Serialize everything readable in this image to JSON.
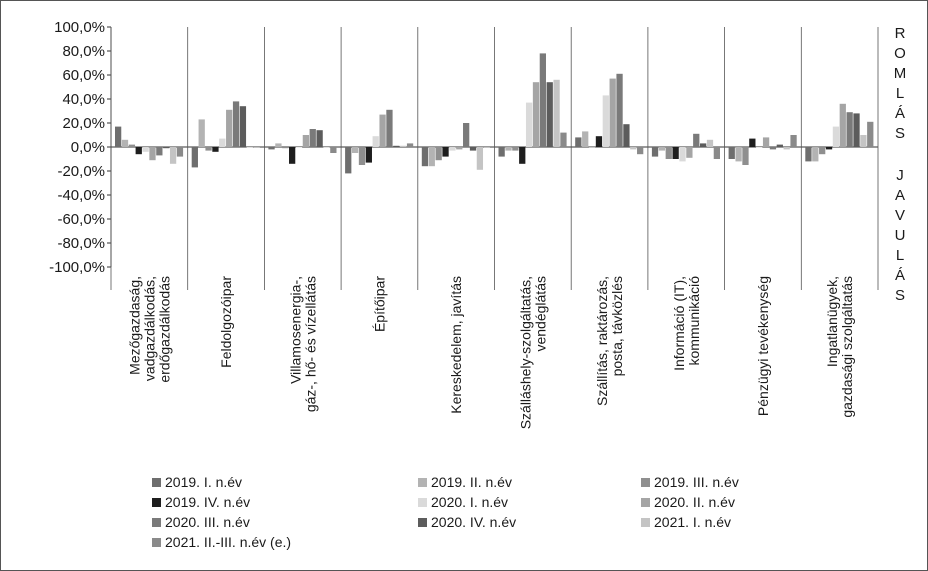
{
  "side_labels": {
    "top": "ROMLÁS",
    "bottom": "JAVULÁS"
  },
  "colors": {
    "axis": "#333333",
    "series": [
      "#6e6e6e",
      "#b3b3b3",
      "#8f8f8f",
      "#1e1e1e",
      "#dadada",
      "#a5a5a5",
      "#7a7a7a",
      "#5c5c5c",
      "#c4c4c4",
      "#8a8a8a"
    ]
  },
  "chart_data": {
    "type": "bar",
    "title": "",
    "xlabel": "",
    "ylabel": "",
    "ylim": [
      -100,
      100
    ],
    "yticks": [
      "100,0%",
      "80,0%",
      "60,0%",
      "40,0%",
      "20,0%",
      "0,0%",
      "-20,0%",
      "-40,0%",
      "-60,0%",
      "-80,0%",
      "-100,0%"
    ],
    "grid": false,
    "legend_position": "bottom",
    "categories": [
      [
        "Mezőgazdaság,",
        "vadgazdálkodás,",
        "erdőgazdálkodás"
      ],
      [
        "Feldolgozóipar"
      ],
      [
        "Villamosenergia-,",
        "gáz-, hő- és vízellátás"
      ],
      [
        "Építőipar"
      ],
      [
        "Kereskedelem, javítás"
      ],
      [
        "Szálláshely-szolgáltatás,",
        "vendéglátás"
      ],
      [
        "Szállítás, raktározás,",
        "posta, távközlés"
      ],
      [
        "Információ (IT),",
        "kommunikáció"
      ],
      [
        "Pénzügyi tevékenység"
      ],
      [
        "Ingatlanügyek,",
        "gazdasági szolgáltatás"
      ]
    ],
    "series": [
      {
        "name": "2019. I. n.év",
        "values": [
          17,
          -17,
          -2,
          -22,
          -16,
          -8,
          8,
          -8,
          -10,
          -12
        ]
      },
      {
        "name": "2019. II. n.év",
        "values": [
          6,
          23,
          3,
          -5,
          -16,
          -3,
          13,
          -3,
          -12,
          -12
        ]
      },
      {
        "name": "2019. III. n.év",
        "values": [
          2,
          -3,
          -1,
          -15,
          -11,
          -3,
          0,
          -10,
          -15,
          -6
        ]
      },
      {
        "name": "2019. IV. n.év",
        "values": [
          -6,
          -4,
          -14,
          -13,
          -8,
          -14,
          9,
          -10,
          7,
          -2
        ]
      },
      {
        "name": "2020. I. n.év",
        "values": [
          -4,
          7,
          0,
          9,
          -3,
          37,
          43,
          -12,
          0,
          17
        ]
      },
      {
        "name": "2020. II. n.év",
        "values": [
          -11,
          31,
          10,
          27,
          -2,
          54,
          57,
          -9,
          8,
          36
        ]
      },
      {
        "name": "2020. III. n.év",
        "values": [
          -7,
          38,
          15,
          31,
          20,
          78,
          61,
          11,
          -2,
          29
        ]
      },
      {
        "name": "2020. IV. n.év",
        "values": [
          -1,
          34,
          14,
          1,
          -3,
          54,
          19,
          3,
          2,
          28
        ]
      },
      {
        "name": "2021. I. n.év",
        "values": [
          -14,
          0,
          0,
          1,
          -19,
          56,
          -2,
          6,
          -2,
          10
        ]
      },
      {
        "name": "2021. II.-III. n.év (e.)",
        "values": [
          -8,
          0,
          -5,
          3,
          0,
          12,
          -6,
          -10,
          10,
          21
        ]
      }
    ]
  }
}
